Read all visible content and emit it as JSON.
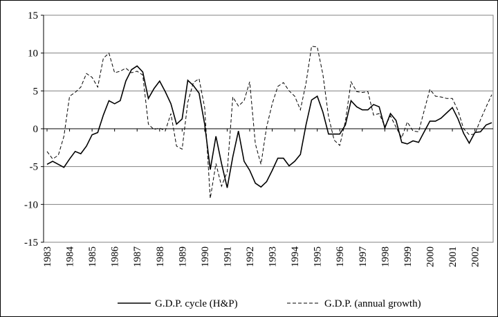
{
  "chart_data": {
    "type": "line",
    "categories": [
      "1983",
      null,
      null,
      null,
      "1984",
      null,
      null,
      null,
      "1985",
      null,
      null,
      null,
      "1986",
      null,
      null,
      null,
      "1987",
      null,
      null,
      null,
      "1988",
      null,
      null,
      null,
      "1989",
      null,
      null,
      null,
      "1990",
      null,
      null,
      null,
      "1991",
      null,
      null,
      null,
      "1992",
      null,
      null,
      null,
      "1993",
      null,
      null,
      null,
      "1994",
      null,
      null,
      null,
      "1995",
      null,
      null,
      null,
      "1996",
      null,
      null,
      null,
      "1997",
      null,
      null,
      null,
      "1998",
      null,
      null,
      null,
      "1999",
      null,
      null,
      null,
      "2000",
      null,
      null,
      null,
      "2001",
      null,
      null,
      null,
      "2002",
      null,
      null,
      null
    ],
    "series": [
      {
        "name": "G.D.P. cycle (H&P)",
        "color": "#000000",
        "dashed": false,
        "values": [
          -4.7,
          -4.3,
          -4.7,
          -5.1,
          -4.0,
          -3.0,
          -3.3,
          -2.3,
          -0.8,
          -0.5,
          1.8,
          3.7,
          3.3,
          3.7,
          6.3,
          7.8,
          8.3,
          7.5,
          4.0,
          5.3,
          6.3,
          4.9,
          3.3,
          0.6,
          1.3,
          6.4,
          5.7,
          4.7,
          0.6,
          -5.4,
          -1.0,
          -4.6,
          -7.8,
          -3.7,
          -0.3,
          -4.3,
          -5.5,
          -7.2,
          -7.7,
          -7.0,
          -5.5,
          -3.9,
          -3.9,
          -4.9,
          -4.3,
          -3.4,
          0.5,
          3.8,
          4.3,
          2.2,
          -0.7,
          -0.7,
          -0.7,
          0.5,
          3.7,
          2.9,
          2.5,
          2.5,
          3.2,
          2.9,
          0.1,
          2.0,
          1.1,
          -1.8,
          -2.0,
          -1.6,
          -1.8,
          -0.4,
          1.0,
          1.0,
          1.4,
          2.1,
          2.8,
          1.3,
          -0.6,
          -1.9,
          -0.5,
          -0.4,
          0.5,
          0.8
        ]
      },
      {
        "name": "G.D.P. (annual growth)",
        "color": "#000000",
        "dashed": true,
        "values": [
          -3.0,
          -4.0,
          -3.5,
          -1.0,
          4.3,
          4.8,
          5.5,
          7.3,
          6.8,
          5.5,
          9.3,
          10.0,
          7.4,
          7.6,
          8.0,
          7.4,
          7.6,
          7.1,
          0.6,
          -0.1,
          0.1,
          -0.3,
          2.0,
          -2.3,
          -2.7,
          3.5,
          6.1,
          6.6,
          2.8,
          -9.2,
          -4.6,
          -7.6,
          -5.7,
          4.2,
          3.0,
          3.7,
          6.2,
          -2.0,
          -4.7,
          0.2,
          3.3,
          5.6,
          6.1,
          5.0,
          4.3,
          2.5,
          6.0,
          10.9,
          10.8,
          7.2,
          1.6,
          -1.5,
          -2.2,
          1.0,
          6.2,
          4.9,
          4.8,
          4.9,
          1.8,
          2.0,
          0.3,
          1.7,
          0.2,
          -1.2,
          0.9,
          -0.3,
          -0.4,
          2.4,
          5.2,
          4.3,
          4.2,
          4.0,
          4.0,
          2.4,
          0.0,
          -0.8,
          -0.7,
          1.2,
          2.9,
          4.5
        ]
      }
    ],
    "ylim": [
      -15,
      15
    ],
    "yticks": [
      -15,
      -10,
      -5,
      0,
      5,
      10,
      15
    ],
    "grid": true,
    "legend": "bottom"
  }
}
